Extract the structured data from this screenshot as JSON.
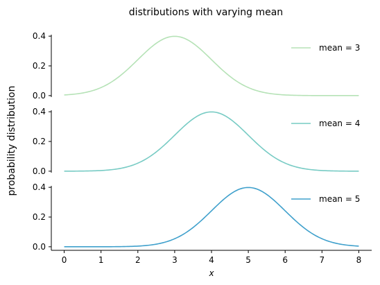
{
  "chart_data": {
    "type": "line",
    "title": "distributions with varying mean",
    "ylabel": "probability distribution",
    "xlabel": "x",
    "xlim": [
      -0.35,
      8.35
    ],
    "xticks": [
      "0",
      "1",
      "2",
      "3",
      "4",
      "5",
      "6",
      "7",
      "8"
    ],
    "grid": false,
    "panels": [
      {
        "series_name": "mean = 3",
        "mean": 3,
        "std": 1,
        "color": "#b5e2b6",
        "ylim": [
          -0.01,
          0.41
        ],
        "yticks": [
          "0.0",
          "0.2",
          "0.4"
        ],
        "legend_placement": "top-right"
      },
      {
        "series_name": "mean = 4",
        "mean": 4,
        "std": 1,
        "color": "#77cbc4",
        "ylim": [
          -0.01,
          0.41
        ],
        "yticks": [
          "0.0",
          "0.2",
          "0.4"
        ],
        "legend_placement": "top-right"
      },
      {
        "series_name": "mean = 5",
        "mean": 5,
        "std": 1,
        "color": "#3fa0cc",
        "ylim": [
          -0.01,
          0.41
        ],
        "yticks": [
          "0.0",
          "0.2",
          "0.4"
        ],
        "legend_placement": "top-right"
      }
    ]
  }
}
